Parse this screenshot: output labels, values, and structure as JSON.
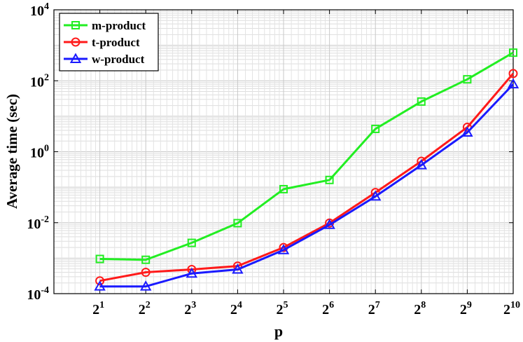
{
  "chart_data": {
    "type": "line",
    "xlabel": "p",
    "ylabel": "Average time (sec)",
    "x_scale": "log2",
    "y_scale": "log10",
    "x": [
      2,
      4,
      8,
      16,
      32,
      64,
      128,
      256,
      512,
      1024
    ],
    "x_tick_labels": [
      {
        "base": "2",
        "exp": "1"
      },
      {
        "base": "2",
        "exp": "2"
      },
      {
        "base": "2",
        "exp": "3"
      },
      {
        "base": "2",
        "exp": "4"
      },
      {
        "base": "2",
        "exp": "5"
      },
      {
        "base": "2",
        "exp": "6"
      },
      {
        "base": "2",
        "exp": "7"
      },
      {
        "base": "2",
        "exp": "8"
      },
      {
        "base": "2",
        "exp": "9"
      },
      {
        "base": "2",
        "exp": "10"
      }
    ],
    "y_tick_labels": [
      {
        "base": "10",
        "exp": "-4"
      },
      {
        "base": "10",
        "exp": "-2"
      },
      {
        "base": "10",
        "exp": "0"
      },
      {
        "base": "10",
        "exp": "2"
      },
      {
        "base": "10",
        "exp": "4"
      }
    ],
    "ylim": [
      0.0001,
      10000
    ],
    "grid": true,
    "legend_position": "top-left",
    "series": [
      {
        "name": "m-product",
        "color": "#22ee22",
        "marker": "square",
        "values": [
          0.00095,
          0.0009,
          0.0027,
          0.0097,
          0.088,
          0.16,
          4.4,
          26,
          110,
          620
        ]
      },
      {
        "name": "t-product",
        "color": "#ff1a1a",
        "marker": "circle",
        "values": [
          0.00023,
          0.0004,
          0.00048,
          0.0006,
          0.002,
          0.0098,
          0.071,
          0.54,
          4.9,
          160
        ]
      },
      {
        "name": "w-product",
        "color": "#1a1aff",
        "marker": "triangle",
        "values": [
          0.00016,
          0.00016,
          0.00037,
          0.00048,
          0.0017,
          0.0087,
          0.055,
          0.42,
          3.5,
          80
        ]
      }
    ]
  }
}
